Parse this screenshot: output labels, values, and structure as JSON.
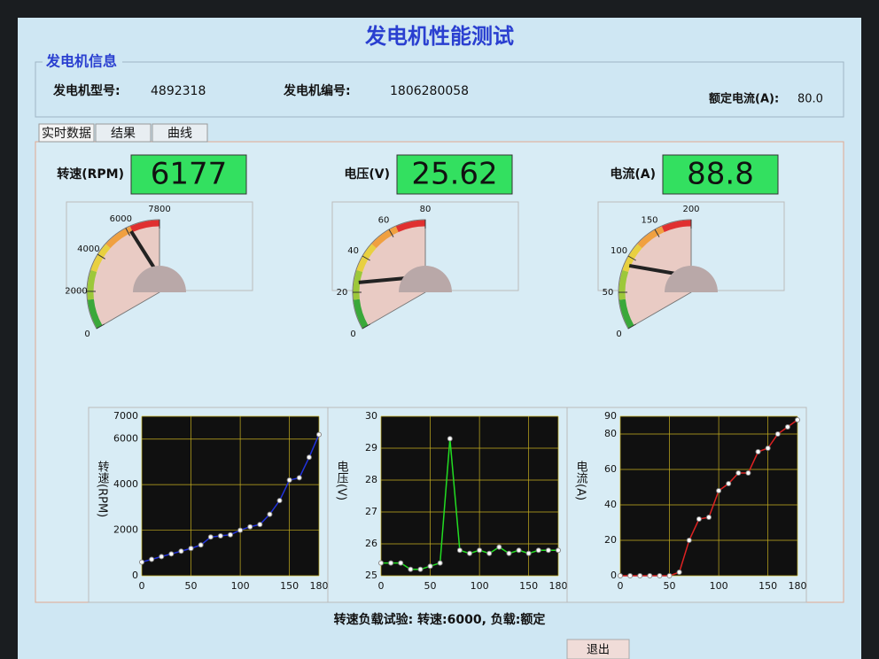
{
  "header": {
    "title": "发电机性能测试"
  },
  "info": {
    "title": "发电机信息",
    "fields": [
      {
        "label": "发电机型号:",
        "value": "4892318"
      },
      {
        "label": "发电机编号:",
        "value": "1806280058"
      },
      {
        "label": "额定电流(A):",
        "value": "80.0"
      }
    ]
  },
  "tabs": [
    "实时数据",
    "结果",
    "曲线"
  ],
  "gauges": [
    {
      "label": "转速(RPM)",
      "value": 6177,
      "lim": [
        0,
        7800
      ],
      "ticks": [
        0,
        2000,
        4000,
        6000,
        7800
      ]
    },
    {
      "label": "电压(V)",
      "value": 25.62,
      "lim": [
        0,
        80
      ],
      "ticks": [
        0,
        20,
        40,
        60,
        80
      ]
    },
    {
      "label": "电流(A)",
      "value": 88.8,
      "lim": [
        0,
        200
      ],
      "ticks": [
        0,
        50,
        100,
        150,
        200
      ]
    }
  ],
  "chart_data": [
    {
      "type": "line",
      "ylabel": "转速(RPM)",
      "color": "#2233dd",
      "x": [
        0,
        10,
        20,
        30,
        40,
        50,
        60,
        70,
        80,
        90,
        100,
        110,
        120,
        130,
        140,
        150,
        160,
        170,
        180
      ],
      "values": [
        600,
        720,
        840,
        960,
        1080,
        1200,
        1350,
        1700,
        1750,
        1800,
        2000,
        2150,
        2250,
        2700,
        3300,
        4200,
        4300,
        5200,
        6200
      ],
      "xlim": [
        0,
        180
      ],
      "xticks": [
        0,
        50,
        100,
        150,
        180
      ],
      "ylim": [
        0,
        7000
      ],
      "yticks": [
        0,
        2000,
        4000,
        6000,
        7000
      ],
      "grid": true
    },
    {
      "type": "line",
      "ylabel": "电压(V)",
      "color": "#22dd22",
      "x": [
        0,
        10,
        20,
        30,
        40,
        50,
        60,
        70,
        80,
        90,
        100,
        110,
        120,
        130,
        140,
        150,
        160,
        170,
        180
      ],
      "values": [
        25.4,
        25.4,
        25.4,
        25.2,
        25.2,
        25.3,
        25.4,
        29.3,
        25.8,
        25.7,
        25.8,
        25.7,
        25.9,
        25.7,
        25.8,
        25.7,
        25.8,
        25.8,
        25.8
      ],
      "xlim": [
        0,
        180
      ],
      "xticks": [
        0,
        50,
        100,
        150,
        180
      ],
      "ylim": [
        25,
        30
      ],
      "yticks": [
        25,
        26,
        27,
        28,
        29,
        30
      ],
      "grid": true
    },
    {
      "type": "line",
      "ylabel": "电流(A)",
      "color": "#dd2222",
      "x": [
        0,
        10,
        20,
        30,
        40,
        50,
        60,
        70,
        80,
        90,
        100,
        110,
        120,
        130,
        140,
        150,
        160,
        170,
        180
      ],
      "values": [
        0,
        0,
        0,
        0,
        0,
        0,
        2,
        20,
        32,
        33,
        48,
        52,
        58,
        58,
        70,
        72,
        80,
        84,
        88
      ],
      "xlim": [
        0,
        180
      ],
      "xticks": [
        0,
        50,
        100,
        150,
        180
      ],
      "ylim": [
        0,
        90
      ],
      "yticks": [
        0,
        20,
        40,
        60,
        80,
        90
      ],
      "grid": true
    }
  ],
  "status": "转速负载试验: 转速:6000, 负载:额定",
  "buttons": [
    "退出"
  ]
}
